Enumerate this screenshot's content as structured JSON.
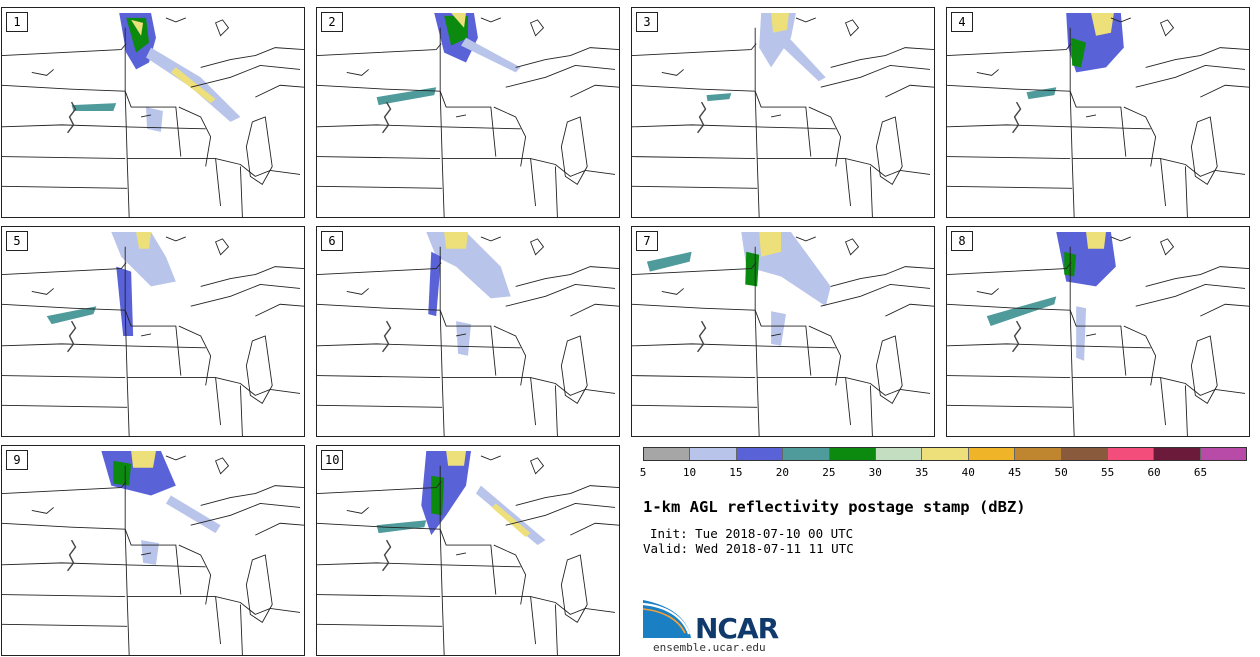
{
  "panels": [
    "1",
    "2",
    "3",
    "4",
    "5",
    "6",
    "7",
    "8",
    "9",
    "10"
  ],
  "colorbar": {
    "colors": [
      "#a6a6a6",
      "#b9c4ea",
      "#5a62d8",
      "#4f9a9a",
      "#0c8a10",
      "#c3dec0",
      "#ede07a",
      "#f0b429",
      "#c0852f",
      "#8a5a3c",
      "#f24d7b",
      "#6b1a3a",
      "#b84aa8"
    ],
    "labels": [
      "5",
      "10",
      "15",
      "20",
      "25",
      "30",
      "35",
      "40",
      "45",
      "50",
      "55",
      "60",
      "65"
    ]
  },
  "title": "1-km AGL reflectivity postage stamp (dBZ)",
  "init": "Init: Tue 2018-07-10 00 UTC",
  "valid": "Valid: Wed 2018-07-11 11 UTC",
  "logo_text": "NCAR",
  "site": "ensemble.ucar.edu"
}
